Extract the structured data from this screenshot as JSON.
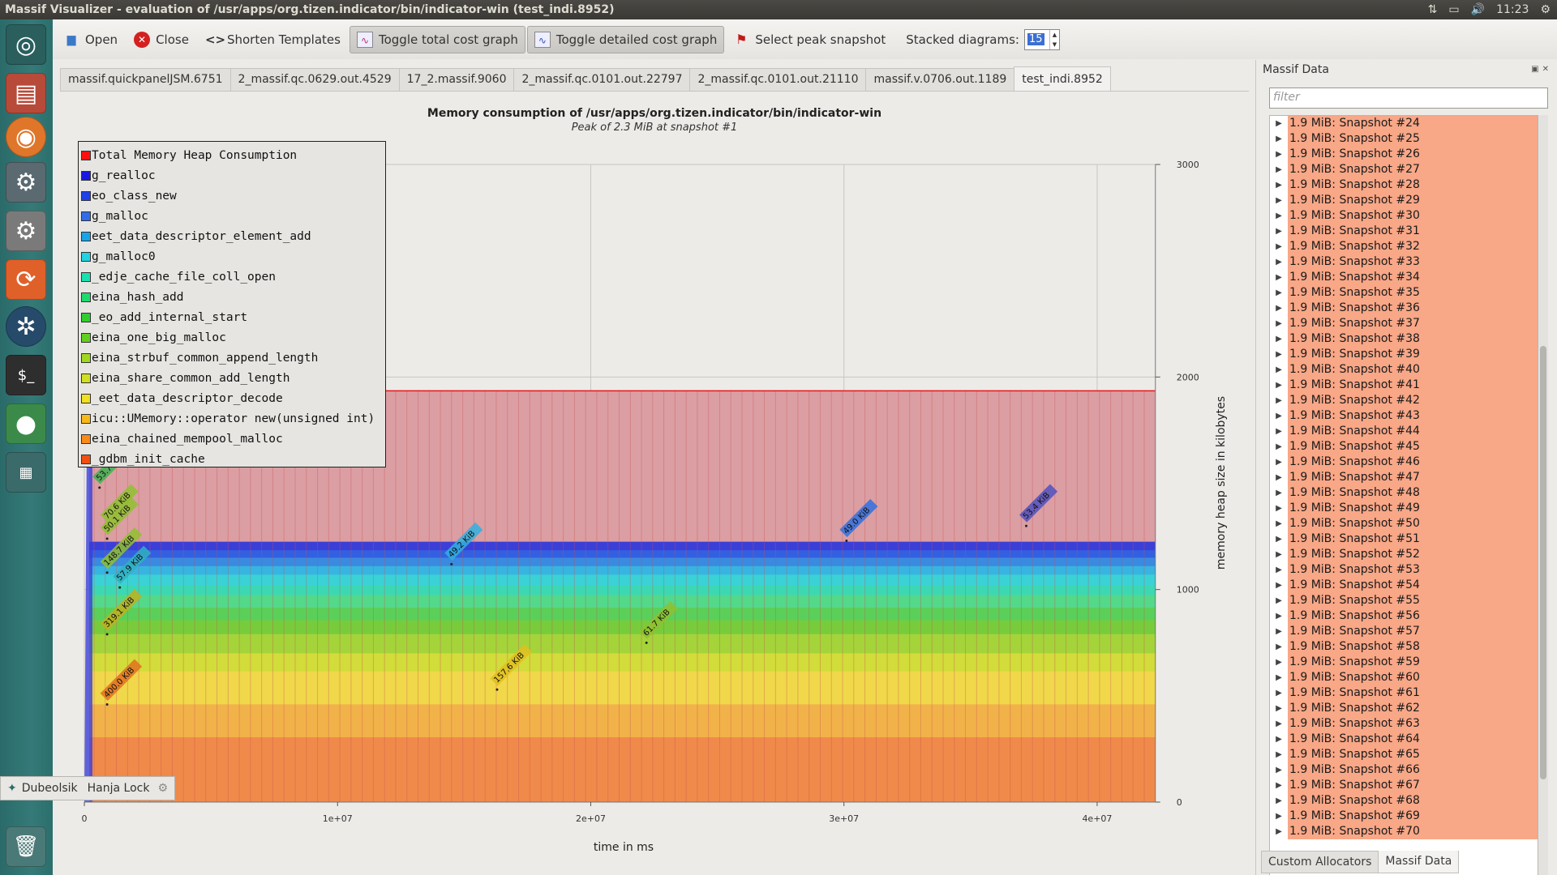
{
  "window": {
    "title": "Massif Visualizer - evaluation of /usr/apps/org.tizen.indicator/bin/indicator-win (test_indi.8952)",
    "clock": "11:23"
  },
  "launcher": [
    "ubuntu-logo-icon",
    "files-icon",
    "firefox-icon",
    "system-settings-icon",
    "settings-gear-icon",
    "software-updater-icon",
    "shutter-icon",
    "terminal-icon",
    "cherry-icon",
    "workspace-switcher-icon",
    "trash-icon"
  ],
  "toolbar": {
    "open": "Open",
    "close": "Close",
    "shorten": "Shorten Templates",
    "toggle_total": "Toggle total cost graph",
    "toggle_detailed": "Toggle detailed cost graph",
    "select_peak": "Select peak snapshot",
    "stacked_label": "Stacked diagrams:",
    "stacked_value": "15"
  },
  "tabs": [
    "massif.quickpanelJSM.6751",
    "2_massif.qc.0629.out.4529",
    "17_2.massif.9060",
    "2_massif.qc.0101.out.22797",
    "2_massif.qc.0101.out.21110",
    "massif.v.0706.out.1189",
    "test_indi.8952"
  ],
  "active_tab": 6,
  "ime": {
    "layout": "Dubeolsik",
    "lock": "Hanja Lock"
  },
  "chart_data": {
    "type": "area",
    "title": "Memory consumption of /usr/apps/org.tizen.indicator/bin/indicator-win",
    "subtitle": "Peak of 2.3 MiB at snapshot #1",
    "xlabel": "time in ms",
    "ylabel": "memory heap size in kilobytes",
    "xlim": [
      0,
      42500000
    ],
    "ylim": [
      0,
      3000
    ],
    "x_ticks": [
      {
        "v": 0,
        "label": "0"
      },
      {
        "v": 10000000,
        "label": "1e+07"
      },
      {
        "v": 20000000,
        "label": "2e+07"
      },
      {
        "v": 30000000,
        "label": "3e+07"
      },
      {
        "v": 40000000,
        "label": "4e+07"
      }
    ],
    "y_ticks": [
      {
        "v": 0,
        "label": "0"
      },
      {
        "v": 1000,
        "label": "1000"
      },
      {
        "v": 2000,
        "label": "2000"
      },
      {
        "v": 3000,
        "label": "3000"
      }
    ],
    "grid": true,
    "legend_position": "top-left",
    "x_end": 42300000,
    "total": 1935,
    "series": [
      {
        "name": "Total Memory Heap Consumption",
        "color": "#ff1010"
      },
      {
        "name": "g_realloc",
        "color": "#1818e0"
      },
      {
        "name": "eo_class_new",
        "color": "#2040e8"
      },
      {
        "name": "g_malloc",
        "color": "#2f6ee8"
      },
      {
        "name": "eet_data_descriptor_element_add",
        "color": "#1aa4e8"
      },
      {
        "name": "g_malloc0",
        "color": "#22d2e0"
      },
      {
        "name": "_edje_cache_file_coll_open",
        "color": "#1ae0b0"
      },
      {
        "name": "eina_hash_add",
        "color": "#20d870"
      },
      {
        "name": "_eo_add_internal_start",
        "color": "#30cc30"
      },
      {
        "name": "eina_one_big_malloc",
        "color": "#62d020"
      },
      {
        "name": "eina_strbuf_common_append_length",
        "color": "#a0d820"
      },
      {
        "name": "eina_share_common_add_length",
        "color": "#d0e020"
      },
      {
        "name": "_eet_data_descriptor_decode",
        "color": "#f0e020"
      },
      {
        "name": "icu::UMemory::operator new(unsigned int)",
        "color": "#f8b818"
      },
      {
        "name": "eina_chained_mempool_malloc",
        "color": "#f88a18"
      },
      {
        "name": "_gdbm_init_cache",
        "color": "#f05010"
      }
    ],
    "bands": [
      {
        "top": 1935,
        "color": "#db9ea3"
      },
      {
        "top": 1225,
        "color": "#3b3fd8"
      },
      {
        "top": 1185,
        "color": "#3360e0"
      },
      {
        "top": 1150,
        "color": "#3a8ae0"
      },
      {
        "top": 1110,
        "color": "#38b4e0"
      },
      {
        "top": 1070,
        "color": "#3ad2d6"
      },
      {
        "top": 1020,
        "color": "#3cd8b4"
      },
      {
        "top": 975,
        "color": "#54d88a"
      },
      {
        "top": 915,
        "color": "#5ad05a"
      },
      {
        "top": 855,
        "color": "#78cc3c"
      },
      {
        "top": 790,
        "color": "#a4d43a"
      },
      {
        "top": 700,
        "color": "#d2dc3a"
      },
      {
        "top": 615,
        "color": "#f0d84a"
      },
      {
        "top": 460,
        "color": "#f2b24a"
      },
      {
        "top": 305,
        "color": "#f08a4a"
      }
    ],
    "annotations": [
      {
        "text": "53.7 KiB",
        "x": 600000,
        "y": 1510,
        "color": "#40b050"
      },
      {
        "text": "70.6 KiB",
        "x": 900000,
        "y": 1330,
        "color": "#90c030"
      },
      {
        "text": "50.1 KiB",
        "x": 900000,
        "y": 1270,
        "color": "#90c030"
      },
      {
        "text": "148.7 KiB",
        "x": 900000,
        "y": 1110,
        "color": "#90c030"
      },
      {
        "text": "57.9 KiB",
        "x": 1400000,
        "y": 1040,
        "color": "#30b0c0"
      },
      {
        "text": "319.1 KiB",
        "x": 900000,
        "y": 820,
        "color": "#c0b020"
      },
      {
        "text": "400.0 KiB",
        "x": 900000,
        "y": 490,
        "color": "#e07020"
      },
      {
        "text": "49.2 KiB",
        "x": 14500000,
        "y": 1150,
        "color": "#30b0e0"
      },
      {
        "text": "157.6 KiB",
        "x": 16300000,
        "y": 560,
        "color": "#e0c020"
      },
      {
        "text": "61.7 KiB",
        "x": 22200000,
        "y": 780,
        "color": "#90c030"
      },
      {
        "text": "49.0 KiB",
        "x": 30100000,
        "y": 1260,
        "color": "#3070e0"
      },
      {
        "text": "53.4 KiB",
        "x": 37200000,
        "y": 1330,
        "color": "#5050c0"
      }
    ]
  },
  "right_panel": {
    "title": "Massif Data",
    "filter_placeholder": "filter",
    "snapshots": [
      "1.9 MiB: Snapshot #24",
      "1.9 MiB: Snapshot #25",
      "1.9 MiB: Snapshot #26",
      "1.9 MiB: Snapshot #27",
      "1.9 MiB: Snapshot #28",
      "1.9 MiB: Snapshot #29",
      "1.9 MiB: Snapshot #30",
      "1.9 MiB: Snapshot #31",
      "1.9 MiB: Snapshot #32",
      "1.9 MiB: Snapshot #33",
      "1.9 MiB: Snapshot #34",
      "1.9 MiB: Snapshot #35",
      "1.9 MiB: Snapshot #36",
      "1.9 MiB: Snapshot #37",
      "1.9 MiB: Snapshot #38",
      "1.9 MiB: Snapshot #39",
      "1.9 MiB: Snapshot #40",
      "1.9 MiB: Snapshot #41",
      "1.9 MiB: Snapshot #42",
      "1.9 MiB: Snapshot #43",
      "1.9 MiB: Snapshot #44",
      "1.9 MiB: Snapshot #45",
      "1.9 MiB: Snapshot #46",
      "1.9 MiB: Snapshot #47",
      "1.9 MiB: Snapshot #48",
      "1.9 MiB: Snapshot #49",
      "1.9 MiB: Snapshot #50",
      "1.9 MiB: Snapshot #51",
      "1.9 MiB: Snapshot #52",
      "1.9 MiB: Snapshot #53",
      "1.9 MiB: Snapshot #54",
      "1.9 MiB: Snapshot #55",
      "1.9 MiB: Snapshot #56",
      "1.9 MiB: Snapshot #57",
      "1.9 MiB: Snapshot #58",
      "1.9 MiB: Snapshot #59",
      "1.9 MiB: Snapshot #60",
      "1.9 MiB: Snapshot #61",
      "1.9 MiB: Snapshot #62",
      "1.9 MiB: Snapshot #63",
      "1.9 MiB: Snapshot #64",
      "1.9 MiB: Snapshot #65",
      "1.9 MiB: Snapshot #66",
      "1.9 MiB: Snapshot #67",
      "1.9 MiB: Snapshot #68",
      "1.9 MiB: Snapshot #69",
      "1.9 MiB: Snapshot #70"
    ],
    "bottom_tabs": [
      "Custom Allocators",
      "Massif Data"
    ]
  }
}
